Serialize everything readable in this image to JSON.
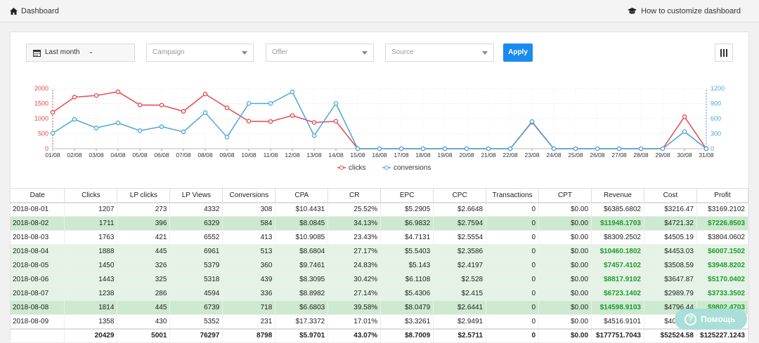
{
  "topbar": {
    "title": "Dashboard",
    "help_link": "How to customize dashboard"
  },
  "filters": {
    "date": "Last month",
    "campaign": "Campaign",
    "offer": "Offer",
    "source": "Source",
    "apply": "Apply"
  },
  "colors": {
    "clicks": "#e8464c",
    "conversions": "#4aa6d9",
    "accent": "#1a8cf0",
    "positive": "#1f9a2e"
  },
  "chart_data": {
    "type": "line",
    "categories": [
      "01/08",
      "02/08",
      "03/08",
      "04/08",
      "05/08",
      "06/08",
      "07/08",
      "08/08",
      "09/08",
      "10/08",
      "11/08",
      "12/08",
      "13/08",
      "14/08",
      "15/08",
      "16/08",
      "17/08",
      "18/08",
      "19/08",
      "20/08",
      "21/08",
      "22/08",
      "23/08",
      "24/08",
      "25/08",
      "26/08",
      "27/08",
      "28/08",
      "29/08",
      "30/08",
      "31/08"
    ],
    "series": [
      {
        "name": "clicks",
        "axis": "left",
        "values": [
          1207,
          1711,
          1763,
          1888,
          1450,
          1443,
          1238,
          1814,
          1358,
          910,
          900,
          1100,
          870,
          910,
          0,
          0,
          0,
          0,
          0,
          0,
          0,
          0,
          880,
          0,
          0,
          0,
          0,
          0,
          0,
          1060,
          0
        ]
      },
      {
        "name": "conversions",
        "axis": "right",
        "values": [
          308,
          584,
          413,
          513,
          360,
          439,
          336,
          718,
          231,
          900,
          900,
          1130,
          260,
          900,
          0,
          0,
          0,
          0,
          0,
          0,
          0,
          0,
          540,
          0,
          0,
          0,
          0,
          0,
          0,
          340,
          0
        ]
      }
    ],
    "y_left": {
      "ticks": [
        "0",
        "500",
        "1000",
        "1500",
        "2000"
      ],
      "lim": [
        0,
        2000
      ]
    },
    "y_right": {
      "ticks": [
        "0",
        "300",
        "600",
        "900",
        "1200"
      ],
      "lim": [
        0,
        1200
      ]
    },
    "legend": "bottom-center",
    "grid": true
  },
  "table": {
    "headers": [
      "Date",
      "Clicks",
      "LP clicks",
      "LP Views",
      "Conversions",
      "CPA",
      "CR",
      "EPC",
      "CPC",
      "Transactions",
      "CPT",
      "Revenue",
      "Cost",
      "Profit"
    ],
    "rows": [
      [
        "2018-08-01",
        "1207",
        "273",
        "4332",
        "308",
        "$10.4431",
        "25.52%",
        "$5.2905",
        "$2.6648",
        "0",
        "$0.00",
        "$6385.6802",
        "$3216.47",
        "$3169.2102"
      ],
      [
        "2018-08-02",
        "1711",
        "396",
        "6329",
        "584",
        "$8.0845",
        "34.13%",
        "$6.9832",
        "$2.7594",
        "0",
        "$0.00",
        "$11948.1703",
        "$4721.32",
        "$7226.8503"
      ],
      [
        "2018-08-03",
        "1763",
        "421",
        "6552",
        "413",
        "$10.9085",
        "23.43%",
        "$4.7131",
        "$2.5554",
        "0",
        "$0.00",
        "$8309.2502",
        "$4505.19",
        "$3804.0602"
      ],
      [
        "2018-08-04",
        "1888",
        "445",
        "6961",
        "513",
        "$8.6804",
        "27.17%",
        "$5.5403",
        "$2.3586",
        "0",
        "$0.00",
        "$10460.1802",
        "$4453.03",
        "$6007.1502"
      ],
      [
        "2018-08-05",
        "1450",
        "326",
        "5379",
        "360",
        "$9.7461",
        "24.83%",
        "$5.143",
        "$2.4197",
        "0",
        "$0.00",
        "$7457.4102",
        "$3508.59",
        "$3948.8202"
      ],
      [
        "2018-08-06",
        "1443",
        "325",
        "5318",
        "439",
        "$8.3095",
        "30.42%",
        "$6.1108",
        "$2.528",
        "0",
        "$0.00",
        "$8817.9102",
        "$3647.87",
        "$5170.0402"
      ],
      [
        "2018-08-07",
        "1238",
        "286",
        "4594",
        "336",
        "$8.8982",
        "27.14%",
        "$5.4306",
        "$2.415",
        "0",
        "$0.00",
        "$6723.1402",
        "$2989.79",
        "$3733.3502"
      ],
      [
        "2018-08-08",
        "1814",
        "445",
        "6739",
        "718",
        "$6.6803",
        "39.58%",
        "$8.0479",
        "$2.6441",
        "0",
        "$0.00",
        "$14598.9103",
        "$4796.44",
        "$9802.4703"
      ],
      [
        "2018-08-09",
        "1358",
        "430",
        "5352",
        "231",
        "$17.3372",
        "17.01%",
        "$3.3261",
        "$2.9491",
        "0",
        "$0.00",
        "$4516.9101",
        "$4004.89",
        "$512.0201"
      ]
    ],
    "row_styles": [
      "",
      "g1",
      "",
      "g2",
      "g2",
      "g2",
      "g2",
      "g1",
      ""
    ],
    "green_cols": [
      false,
      true,
      false,
      true,
      true,
      true,
      true,
      true,
      false
    ],
    "totals": [
      "",
      "20429",
      "5001",
      "76297",
      "8798",
      "$5.9701",
      "43.07%",
      "$8.7009",
      "$2.5711",
      "0",
      "$0.00",
      "$177751.7043",
      "$52524.58",
      "$125227.1243"
    ]
  },
  "help_widget": {
    "label": "Помощь",
    "icon": "?"
  }
}
